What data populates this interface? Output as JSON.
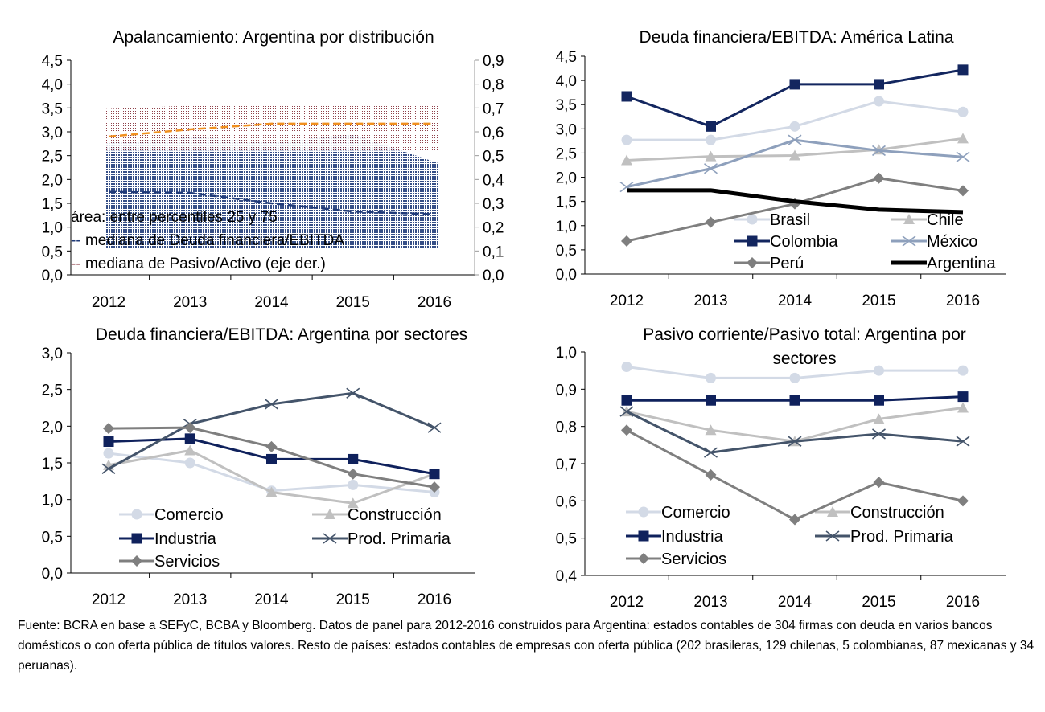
{
  "chart_data": [
    {
      "type": "area",
      "title": "Apalancamiento: Argentina por distribución",
      "categories": [
        "2012",
        "2013",
        "2014",
        "2015",
        "2016"
      ],
      "yticks": [
        "0,0",
        "0,5",
        "1,0",
        "1,5",
        "2,0",
        "2,5",
        "3,0",
        "3,5",
        "4,0",
        "4,5"
      ],
      "ylim": [
        0,
        4.5
      ],
      "y2ticks": [
        "0,0",
        "0,1",
        "0,2",
        "0,3",
        "0,4",
        "0,5",
        "0,6",
        "0,7",
        "0,8",
        "0,9"
      ],
      "y2lim": [
        0,
        0.9
      ],
      "areas": [
        {
          "name": "Deuda financiera/EBITDA p25-p75",
          "axis": "left",
          "color": "#1f3a78",
          "lower": [
            0.57,
            0.57,
            0.57,
            0.57,
            0.57
          ],
          "upper": [
            2.76,
            2.9,
            2.78,
            2.95,
            2.34
          ]
        },
        {
          "name": "Pasivo/Activo p25-p75",
          "axis": "right",
          "color": "#7b1f2a",
          "lower": [
            0.52,
            0.52,
            0.52,
            0.52,
            0.52
          ],
          "upper": [
            0.695,
            0.71,
            0.71,
            0.71,
            0.71
          ]
        }
      ],
      "series": [
        {
          "name": "mediana de Deuda financiera/EBITDA",
          "axis": "left",
          "color": "#1f3a78",
          "dash": true,
          "values": [
            1.74,
            1.72,
            1.5,
            1.33,
            1.27
          ]
        },
        {
          "name": "mediana de Pasivo/Activo (eje der.)",
          "axis": "right",
          "color": "#f0901e",
          "dash": true,
          "values": [
            0.58,
            0.61,
            0.634,
            0.634,
            0.634
          ]
        }
      ],
      "legend": [
        {
          "text": "área: entre percentiles 25 y 75",
          "prefix": "",
          "color": "#000000"
        },
        {
          "text": "mediana de Deuda financiera/EBITDA",
          "prefix": "--",
          "color": "#1f3a78"
        },
        {
          "text": "mediana de Pasivo/Activo (eje der.)",
          "prefix": "--",
          "color": "#7b1f2a"
        }
      ]
    },
    {
      "type": "line",
      "title": "Deuda financiera/EBITDA:  América Latina",
      "categories": [
        "2012",
        "2013",
        "2014",
        "2015",
        "2016"
      ],
      "yticks": [
        "0,0",
        "0,5",
        "1,0",
        "1,5",
        "2,0",
        "2,5",
        "3,0",
        "3,5",
        "4,0",
        "4,5"
      ],
      "ylim": [
        0,
        4.5
      ],
      "series": [
        {
          "name": "Brasil",
          "color": "#d3dae6",
          "marker": "circle",
          "values": [
            2.77,
            2.77,
            3.05,
            3.57,
            3.35
          ]
        },
        {
          "name": "Chile",
          "color": "#c0c0c0",
          "marker": "triangle",
          "values": [
            2.35,
            2.43,
            2.45,
            2.57,
            2.8
          ]
        },
        {
          "name": "Colombia",
          "color": "#13265f",
          "marker": "square",
          "values": [
            3.67,
            3.05,
            3.92,
            3.92,
            4.22
          ]
        },
        {
          "name": "México",
          "color": "#8ea0bc",
          "marker": "x",
          "values": [
            1.8,
            2.18,
            2.77,
            2.55,
            2.42
          ]
        },
        {
          "name": "Perú",
          "color": "#7f7f7f",
          "marker": "diamond",
          "values": [
            0.68,
            1.07,
            1.45,
            1.98,
            1.72
          ]
        },
        {
          "name": "Argentina",
          "color": "#000000",
          "marker": "none",
          "width": 5,
          "values": [
            1.73,
            1.73,
            1.5,
            1.33,
            1.28
          ]
        }
      ]
    },
    {
      "type": "line",
      "title": "Deuda financiera/EBITDA:  Argentina por sectores",
      "categories": [
        "2012",
        "2013",
        "2014",
        "2015",
        "2016"
      ],
      "yticks": [
        "0,0",
        "0,5",
        "1,0",
        "1,5",
        "2,0",
        "2,5",
        "3,0"
      ],
      "ylim": [
        0,
        3
      ],
      "series": [
        {
          "name": "Comercio",
          "color": "#d3dae6",
          "marker": "circle",
          "values": [
            1.63,
            1.5,
            1.12,
            1.2,
            1.1
          ]
        },
        {
          "name": "Construcción",
          "color": "#c0c0c0",
          "marker": "triangle",
          "values": [
            1.47,
            1.67,
            1.1,
            0.95,
            1.35
          ]
        },
        {
          "name": "Industria",
          "color": "#0f215c",
          "marker": "square",
          "values": [
            1.79,
            1.83,
            1.55,
            1.55,
            1.35
          ]
        },
        {
          "name": "Prod. Primaria",
          "color": "#44546a",
          "marker": "x",
          "values": [
            1.42,
            2.03,
            2.3,
            2.45,
            1.98
          ]
        },
        {
          "name": "Servicios",
          "color": "#7f7f7f",
          "marker": "diamond",
          "values": [
            1.97,
            1.98,
            1.72,
            1.35,
            1.17
          ]
        }
      ]
    },
    {
      "type": "line",
      "title": "Pasivo corriente/Pasivo total: Argentina por sectores",
      "categories": [
        "2012",
        "2013",
        "2014",
        "2015",
        "2016"
      ],
      "yticks": [
        "0,4",
        "0,5",
        "0,6",
        "0,7",
        "0,8",
        "0,9",
        "1,0"
      ],
      "ylim": [
        0.4,
        1.0
      ],
      "series": [
        {
          "name": "Comercio",
          "color": "#d3dae6",
          "marker": "circle",
          "values": [
            0.96,
            0.93,
            0.93,
            0.95,
            0.95
          ]
        },
        {
          "name": "Construcción",
          "color": "#c0c0c0",
          "marker": "triangle",
          "values": [
            0.84,
            0.79,
            0.76,
            0.82,
            0.85
          ]
        },
        {
          "name": "Industria",
          "color": "#0f215c",
          "marker": "square",
          "values": [
            0.87,
            0.87,
            0.87,
            0.87,
            0.88
          ]
        },
        {
          "name": "Prod. Primaria",
          "color": "#44546a",
          "marker": "x",
          "values": [
            0.84,
            0.73,
            0.76,
            0.78,
            0.76
          ]
        },
        {
          "name": "Servicios",
          "color": "#7f7f7f",
          "marker": "diamond",
          "values": [
            0.79,
            0.67,
            0.55,
            0.65,
            0.6
          ]
        }
      ]
    }
  ],
  "footnote": "Fuente: BCRA en base a SEFyC, BCBA y Bloomberg. Datos de panel para 2012-2016 construidos para Argentina: estados contables de 304 firmas con deuda en varios bancos domésticos o con oferta pública de títulos valores. Resto de países: estados contables de empresas  con oferta pública (202 brasileras, 129 chilenas, 5 colombianas, 87 mexicanas y 34 peruanas)."
}
